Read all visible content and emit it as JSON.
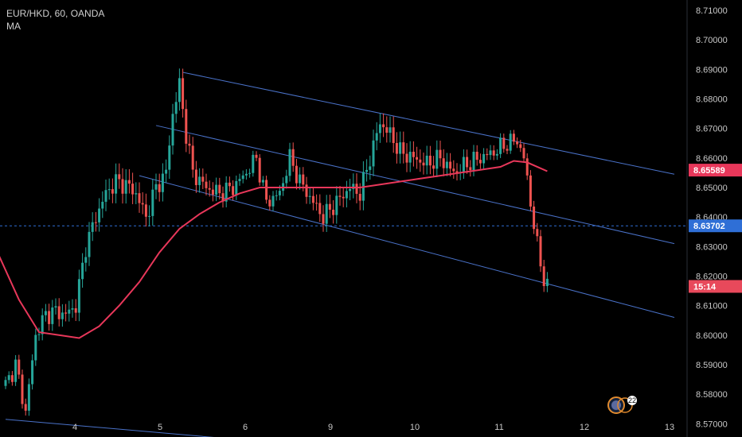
{
  "header": {
    "symbol_line": "EUR/HKD, 60, OANDA",
    "indicator": "MA"
  },
  "price_tags": [
    {
      "label": "8.65589",
      "price": 8.65589,
      "color": "#e8375a"
    },
    {
      "label": "8.63702",
      "price": 8.63702,
      "color": "#2f6fd6"
    },
    {
      "label": "15:14",
      "price": 8.6165,
      "color": "#e8495b"
    }
  ],
  "colors": {
    "bull": "#26a69a",
    "bear": "#ef5350",
    "ma": "#e8375a",
    "channel": "#4a72c9",
    "hline": "#2f6fd6"
  },
  "badge": {
    "count": "22",
    "icon": "avatar-badge-icon"
  },
  "chart_data": {
    "type": "candlestick",
    "x_ticks": [
      "4",
      "5",
      "6",
      "9",
      "10",
      "11",
      "12",
      "13"
    ],
    "y_ticks": [
      "8.71000",
      "8.70000",
      "8.69000",
      "8.68000",
      "8.67000",
      "8.66000",
      "8.65000",
      "8.64000",
      "8.63000",
      "8.62000",
      "8.61000",
      "8.60000",
      "8.59000",
      "8.58000",
      "8.57000"
    ],
    "ylim": [
      8.5655,
      8.7135
    ],
    "horizontal_line": 8.63702,
    "close_anchors": [
      [
        0,
        8.583
      ],
      [
        3,
        8.59
      ],
      [
        6,
        8.574
      ],
      [
        9,
        8.6
      ],
      [
        12,
        8.607
      ],
      [
        15,
        8.608
      ],
      [
        18,
        8.607
      ],
      [
        21,
        8.61
      ],
      [
        24,
        8.63
      ],
      [
        27,
        8.64
      ],
      [
        30,
        8.648
      ],
      [
        33,
        8.652
      ],
      [
        36,
        8.651
      ],
      [
        39,
        8.648
      ],
      [
        42,
        8.64
      ],
      [
        45,
        8.65
      ],
      [
        48,
        8.655
      ],
      [
        50,
        8.675
      ],
      [
        52,
        8.685
      ],
      [
        54,
        8.668
      ],
      [
        56,
        8.655
      ],
      [
        60,
        8.65
      ],
      [
        64,
        8.648
      ],
      [
        68,
        8.65
      ],
      [
        72,
        8.655
      ],
      [
        75,
        8.66
      ],
      [
        78,
        8.645
      ],
      [
        82,
        8.648
      ],
      [
        85,
        8.66
      ],
      [
        88,
        8.652
      ],
      [
        92,
        8.645
      ],
      [
        95,
        8.64
      ],
      [
        99,
        8.645
      ],
      [
        103,
        8.65
      ],
      [
        106,
        8.648
      ],
      [
        109,
        8.66
      ],
      [
        112,
        8.672
      ],
      [
        115,
        8.668
      ],
      [
        118,
        8.662
      ],
      [
        122,
        8.66
      ],
      [
        126,
        8.658
      ],
      [
        130,
        8.66
      ],
      [
        134,
        8.655
      ],
      [
        138,
        8.658
      ],
      [
        142,
        8.66
      ],
      [
        146,
        8.662
      ],
      [
        150,
        8.665
      ],
      [
        153,
        8.666
      ],
      [
        155,
        8.66
      ],
      [
        157,
        8.645
      ],
      [
        159,
        8.63
      ],
      [
        161,
        8.619
      ],
      [
        162,
        8.6165
      ]
    ],
    "ma_points": [
      [
        -2,
        8.627
      ],
      [
        4,
        8.612
      ],
      [
        10,
        8.601
      ],
      [
        16,
        8.6
      ],
      [
        22,
        8.599
      ],
      [
        28,
        8.603
      ],
      [
        34,
        8.61
      ],
      [
        40,
        8.618
      ],
      [
        46,
        8.628
      ],
      [
        52,
        8.636
      ],
      [
        58,
        8.641
      ],
      [
        64,
        8.645
      ],
      [
        70,
        8.648
      ],
      [
        76,
        8.65
      ],
      [
        82,
        8.65
      ],
      [
        88,
        8.65
      ],
      [
        94,
        8.65
      ],
      [
        100,
        8.65
      ],
      [
        106,
        8.65
      ],
      [
        112,
        8.651
      ],
      [
        118,
        8.652
      ],
      [
        124,
        8.653
      ],
      [
        130,
        8.654
      ],
      [
        136,
        8.655
      ],
      [
        142,
        8.656
      ],
      [
        148,
        8.657
      ],
      [
        152,
        8.659
      ],
      [
        156,
        8.6585
      ],
      [
        160,
        8.6565
      ],
      [
        162,
        8.6555
      ]
    ],
    "channels": [
      {
        "points": [
          [
            53,
            8.689
          ],
          [
            200,
            8.6545
          ]
        ]
      },
      {
        "points": [
          [
            45,
            8.671
          ],
          [
            200,
            8.631
          ]
        ]
      },
      {
        "points": [
          [
            40,
            8.654
          ],
          [
            200,
            8.606
          ]
        ]
      },
      {
        "points": [
          [
            0,
            8.5715
          ],
          [
            63,
            8.5653
          ]
        ]
      }
    ]
  }
}
